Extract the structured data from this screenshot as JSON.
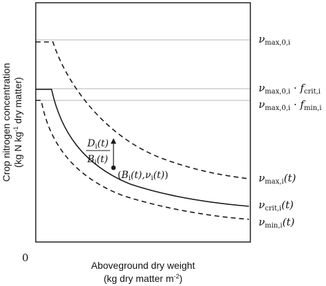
{
  "axes": {
    "origin_label": "0",
    "x_title_line1": "Aboveground dry weight",
    "x_title_line2_pre": "(kg dry matter m",
    "x_title_line2_sup": "-2",
    "x_title_line2_post": ")",
    "y_title_line1": "Crop nitrogen concentration",
    "y_title_line2_pre": "(kg N kg",
    "y_title_line2_sup": "-1",
    "y_title_line2_post": " dry matter)"
  },
  "labels": {
    "vmax0": {
      "sym": "ν",
      "sub": "max,0,i"
    },
    "vcrit0": {
      "sym": "ν",
      "sub": "max,0,i",
      "dot": " · ",
      "f": "f",
      "fsub": "crit,i"
    },
    "vmin0": {
      "sym": "ν",
      "sub": "max,0,i",
      "dot": " · ",
      "f": "f",
      "fsub": "min,i"
    },
    "vmax_t": {
      "sym": "ν",
      "sub": "max,i",
      "arg": "(t)"
    },
    "vcrit_t": {
      "sym": "ν",
      "sub": "crit,i",
      "arg": "(t)"
    },
    "vmin_t": {
      "sym": "ν",
      "sub": "min,i",
      "arg": "(t)"
    }
  },
  "annotation": {
    "numerator_sym": "D",
    "numerator_sub": "i",
    "numerator_arg": "(t)",
    "denominator_sym": "B",
    "denominator_sub": "i",
    "denominator_arg": "(t)",
    "point_open": "(",
    "point_B": "B",
    "point_B_sub": "i",
    "point_B_arg": "(t),",
    "point_v": "ν",
    "point_v_sub": "i",
    "point_v_arg": "(t)",
    "point_close": ")"
  },
  "colors": {
    "curve": "#1a1a1a",
    "reference_line": "#b5b5b5",
    "frame": "#111111"
  }
}
